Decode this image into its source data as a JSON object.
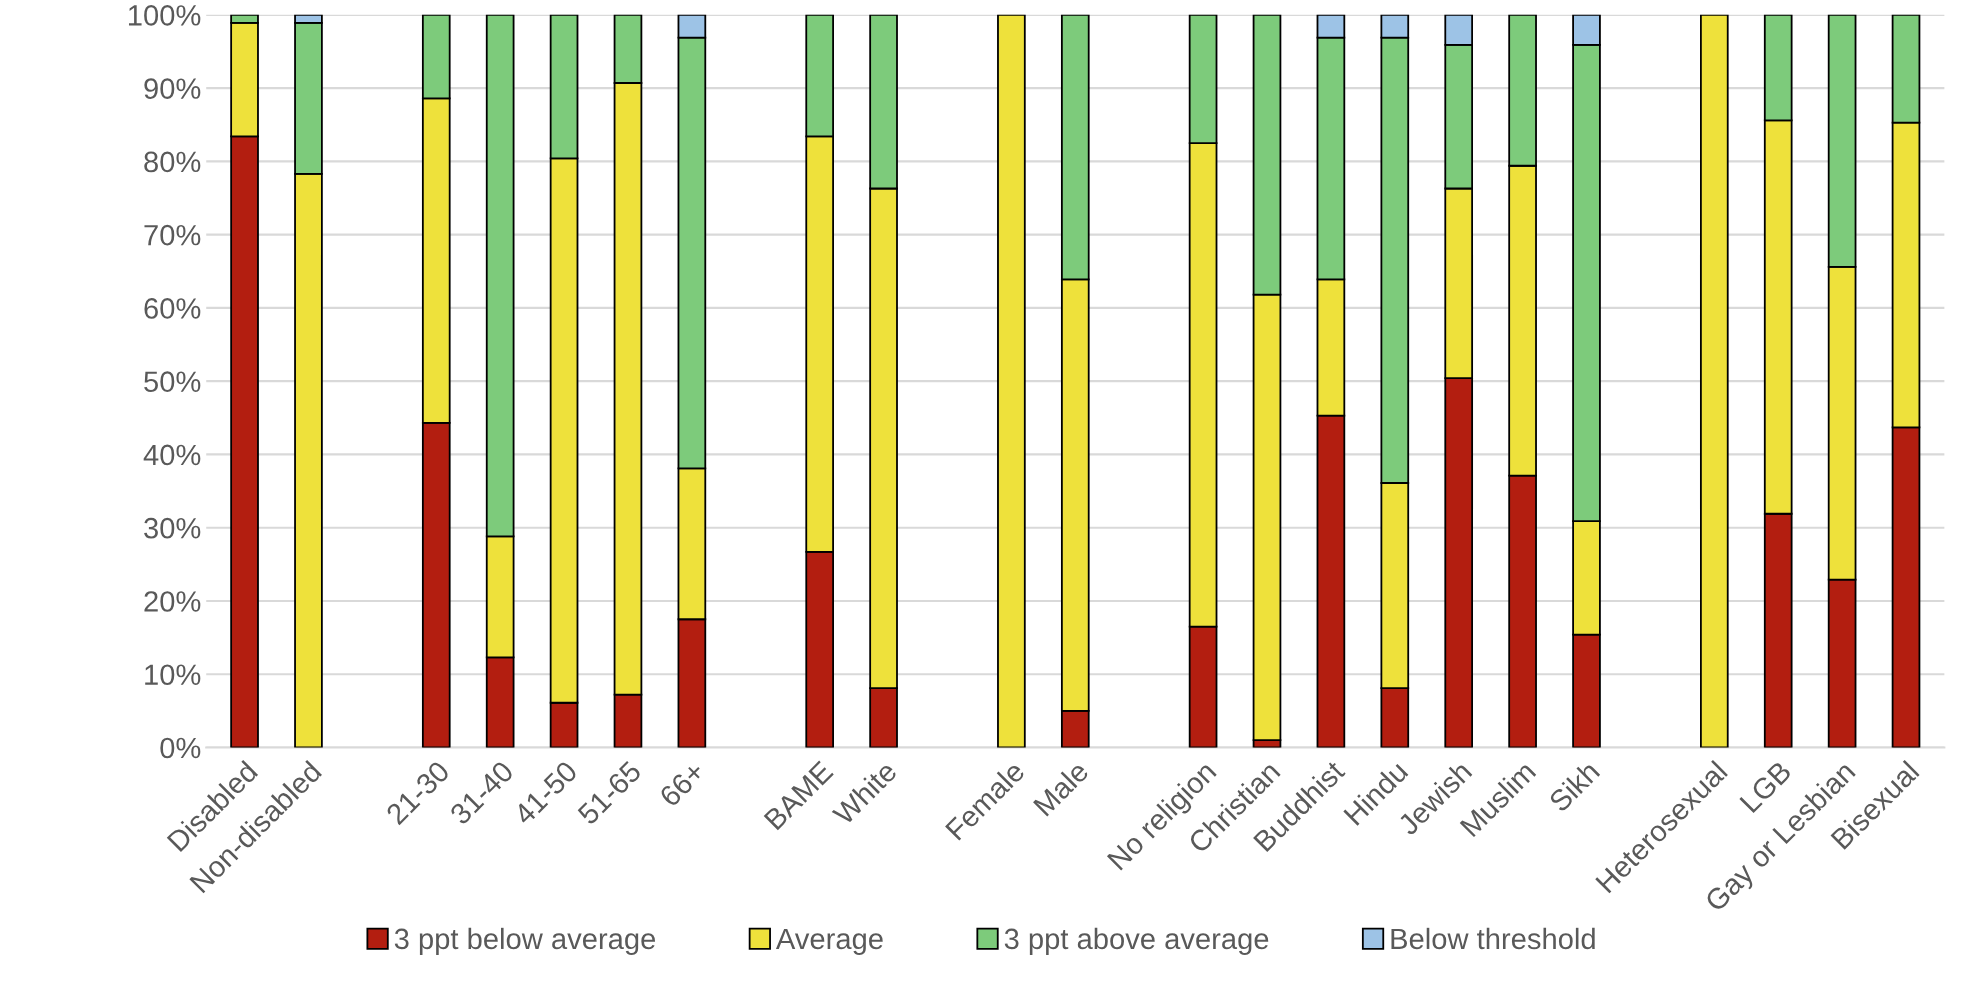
{
  "chart_data": {
    "type": "bar",
    "stacked": true,
    "categories": [
      "Disabled",
      "Non-disabled",
      null,
      "21-30",
      "31-40",
      "41-50",
      "51-65",
      "66+",
      null,
      "BAME",
      "White",
      null,
      "Female",
      "Male",
      null,
      "No religion",
      "Christian",
      "Buddhist",
      "Hindu",
      "Jewish",
      "Muslim",
      "Sikh",
      null,
      "Heterosexual",
      "LGB",
      "Gay or Lesbian",
      "Bisexual"
    ],
    "series": [
      {
        "name": "3 ppt below average",
        "color": "#b31e10",
        "values": [
          83.4,
          null,
          null,
          44.3,
          12.3,
          6.1,
          7.2,
          17.5,
          null,
          26.7,
          8.1,
          null,
          null,
          5.0,
          null,
          16.5,
          1.0,
          45.3,
          8.1,
          50.4,
          37.1,
          15.4,
          null,
          null,
          31.9,
          22.9,
          43.7
        ]
      },
      {
        "name": "Average",
        "color": "#eee13b",
        "values": [
          15.5,
          78.3,
          null,
          44.3,
          16.5,
          74.3,
          83.5,
          20.6,
          null,
          56.7,
          68.2,
          null,
          100,
          58.9,
          null,
          66.0,
          60.8,
          18.6,
          28.0,
          25.9,
          42.3,
          15.5,
          null,
          100,
          53.7,
          42.7,
          41.6
        ]
      },
      {
        "name": "3 ppt above average",
        "color": "#7dcb7b",
        "values": [
          1.1,
          20.6,
          null,
          11.4,
          71.2,
          19.6,
          9.3,
          58.8,
          null,
          16.6,
          23.7,
          null,
          null,
          36.1,
          null,
          17.5,
          38.2,
          33.0,
          60.8,
          19.6,
          20.6,
          65.0,
          null,
          null,
          14.4,
          34.4,
          14.7
        ]
      },
      {
        "name": "Below threshold",
        "color": "#9dc3e6",
        "values": [
          null,
          1.1,
          null,
          null,
          null,
          null,
          null,
          3.1,
          null,
          null,
          null,
          null,
          null,
          null,
          null,
          null,
          null,
          3.1,
          3.1,
          4.1,
          null,
          4.1,
          null,
          null,
          null,
          null,
          null
        ]
      }
    ],
    "ylim": [
      0,
      100
    ],
    "yticks": [
      {
        "value": 0,
        "label": "0%"
      },
      {
        "value": 10,
        "label": "10%"
      },
      {
        "value": 20,
        "label": "20%"
      },
      {
        "value": 30,
        "label": "30%"
      },
      {
        "value": 40,
        "label": "40%"
      },
      {
        "value": 50,
        "label": "50%"
      },
      {
        "value": 60,
        "label": "60%"
      },
      {
        "value": 70,
        "label": "70%"
      },
      {
        "value": 80,
        "label": "80%"
      },
      {
        "value": 90,
        "label": "90%"
      },
      {
        "value": 100,
        "label": "100%"
      }
    ],
    "grid": "y",
    "legend": "bottom"
  }
}
